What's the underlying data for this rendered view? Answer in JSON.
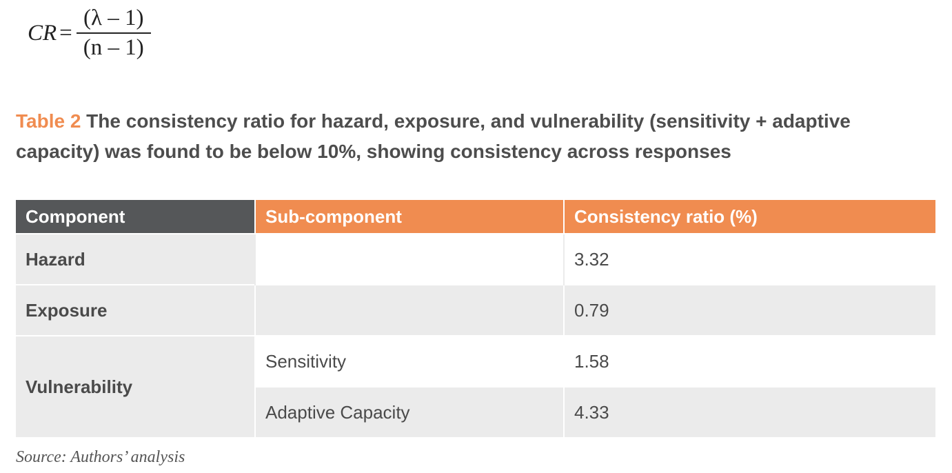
{
  "formula": {
    "lhs": "CR",
    "equals": "=",
    "numerator": "(λ – 1)",
    "denominator": "(n – 1)"
  },
  "caption": {
    "label": "Table 2",
    "text": " The consistency ratio for hazard, exposure, and vulnerability (sensitivity + adaptive capacity) was found to be below 10%, showing consistency across responses"
  },
  "table": {
    "headers": [
      "Component",
      "Sub-component",
      "Consistency ratio (%)"
    ],
    "rows": [
      {
        "component": "Hazard",
        "sub": "",
        "ratio": "3.32"
      },
      {
        "component": "Exposure",
        "sub": "",
        "ratio": "0.79"
      },
      {
        "component": "Vulnerability",
        "sub": "Sensitivity",
        "ratio": "1.58"
      },
      {
        "component": "",
        "sub": "Adaptive Capacity",
        "ratio": "4.33"
      }
    ]
  },
  "source": "Source: Authors’ analysis",
  "colors": {
    "accent": "#f08c50",
    "header_dark": "#555759",
    "row_alt": "#ebebeb"
  }
}
